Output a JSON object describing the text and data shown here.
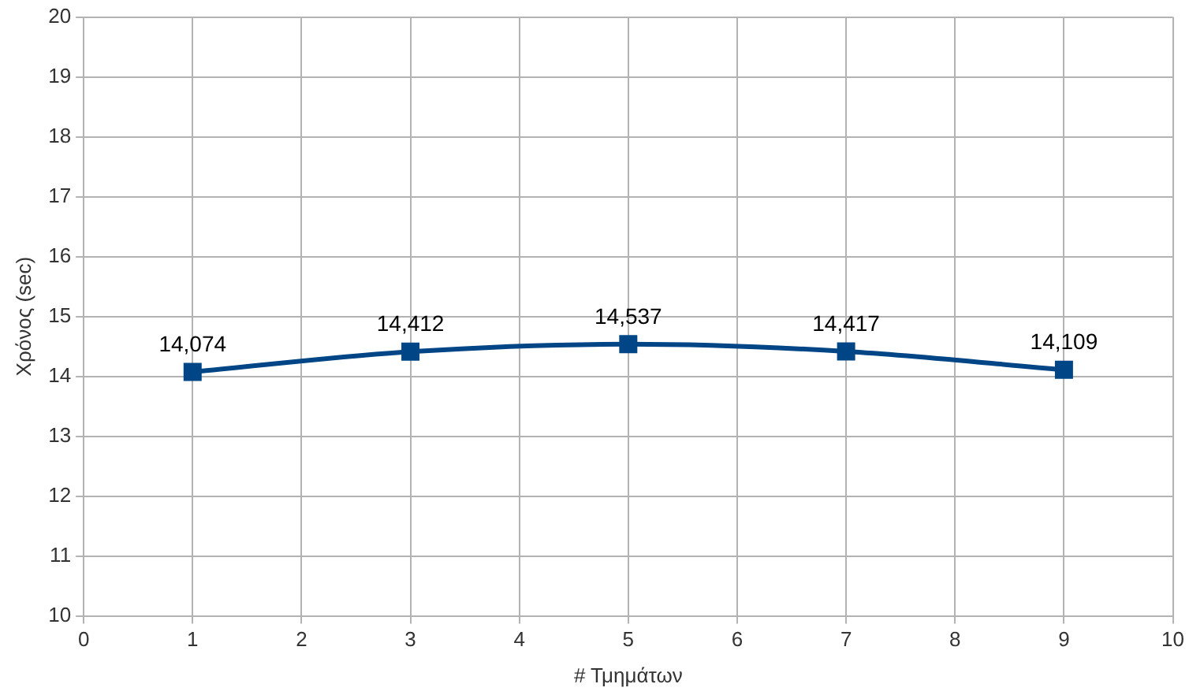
{
  "chart_data": {
    "type": "line",
    "xlabel": "# Τμημάτων",
    "ylabel": "Χρόνος (sec)",
    "x": [
      1,
      3,
      5,
      7,
      9
    ],
    "series": [
      {
        "color": "#004586",
        "values": [
          14.074,
          14.412,
          14.537,
          14.417,
          14.109
        ]
      }
    ],
    "annotations": [
      {
        "text": "14,074",
        "x": 1,
        "y": 14.074
      },
      {
        "text": "14,412",
        "x": 3,
        "y": 14.412
      },
      {
        "text": "14,537",
        "x": 5,
        "y": 14.537
      },
      {
        "text": "14,417",
        "x": 7,
        "y": 14.417
      },
      {
        "text": "14,109",
        "x": 9,
        "y": 14.109
      }
    ],
    "xlim": [
      0,
      10
    ],
    "xticks": [
      0,
      1,
      2,
      3,
      4,
      5,
      6,
      7,
      8,
      9,
      10
    ],
    "ylim": [
      10,
      20
    ],
    "yticks": [
      10,
      11,
      12,
      13,
      14,
      15,
      16,
      17,
      18,
      19,
      20
    ],
    "grid": true,
    "marker": "square",
    "line_style": "solid"
  }
}
